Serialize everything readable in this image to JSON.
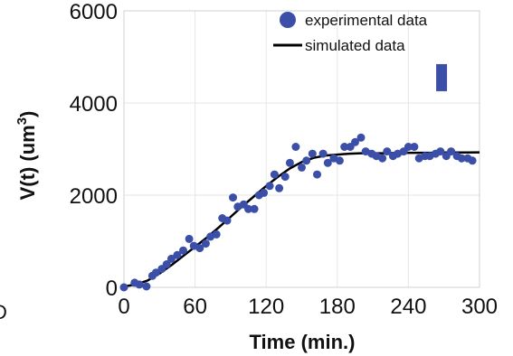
{
  "chart_data": {
    "type": "scatter",
    "xlabel": "Time (min.)",
    "ylabel": "V(t) (um",
    "ylabel_superscript": "3",
    "ylabel_close": ")",
    "xlim": [
      0,
      300
    ],
    "ylim": [
      0,
      6000
    ],
    "xticks": [
      0,
      60,
      120,
      180,
      240,
      300
    ],
    "yticks": [
      0,
      2000,
      4000,
      6000
    ],
    "grid": true,
    "legend_position": "top-right",
    "series": [
      {
        "name": "experimental data",
        "kind": "scatter",
        "color": "#3b4fa8",
        "x": [
          0,
          9,
          13,
          19,
          24,
          27,
          32,
          36,
          40,
          45,
          50,
          55,
          59,
          64,
          69,
          73,
          78,
          83,
          87,
          92,
          96,
          101,
          105,
          110,
          114,
          118,
          123,
          127,
          131,
          136,
          140,
          145,
          150,
          154,
          159,
          163,
          168,
          172,
          177,
          182,
          186,
          191,
          195,
          200,
          204,
          209,
          213,
          218,
          222,
          227,
          231,
          236,
          240,
          245,
          249,
          254,
          258,
          263,
          267,
          272,
          276,
          281,
          285,
          290,
          294
        ],
        "y": [
          0,
          100,
          60,
          20,
          250,
          320,
          400,
          500,
          620,
          700,
          800,
          1050,
          900,
          850,
          950,
          1100,
          1150,
          1500,
          1450,
          1950,
          1750,
          1800,
          1700,
          1700,
          2000,
          2050,
          2200,
          2450,
          2150,
          2400,
          2700,
          3050,
          2600,
          2750,
          2900,
          2450,
          2900,
          2700,
          2800,
          2750,
          3050,
          3050,
          3150,
          3250,
          2950,
          2900,
          2850,
          2800,
          2950,
          2850,
          2900,
          2950,
          3050,
          3050,
          2800,
          2850,
          2850,
          2900,
          2950,
          2850,
          2950,
          2850,
          2800,
          2800,
          2750
        ]
      },
      {
        "name": "simulated data",
        "kind": "line",
        "color": "#000000",
        "x": [
          0,
          10,
          20,
          30,
          40,
          50,
          60,
          70,
          80,
          90,
          100,
          110,
          120,
          130,
          140,
          150,
          160,
          170,
          180,
          190,
          200,
          210,
          220,
          230,
          240,
          250,
          260,
          270,
          280,
          290,
          300
        ],
        "y": [
          20,
          60,
          150,
          300,
          480,
          680,
          880,
          1080,
          1300,
          1530,
          1760,
          1980,
          2200,
          2400,
          2580,
          2720,
          2810,
          2860,
          2880,
          2900,
          2910,
          2910,
          2910,
          2915,
          2920,
          2920,
          2920,
          2925,
          2925,
          2925,
          2930
        ]
      }
    ],
    "annotation_marker": {
      "x": 268,
      "y": 4550,
      "color": "#3b4fa8"
    }
  },
  "panel_letter": "D"
}
